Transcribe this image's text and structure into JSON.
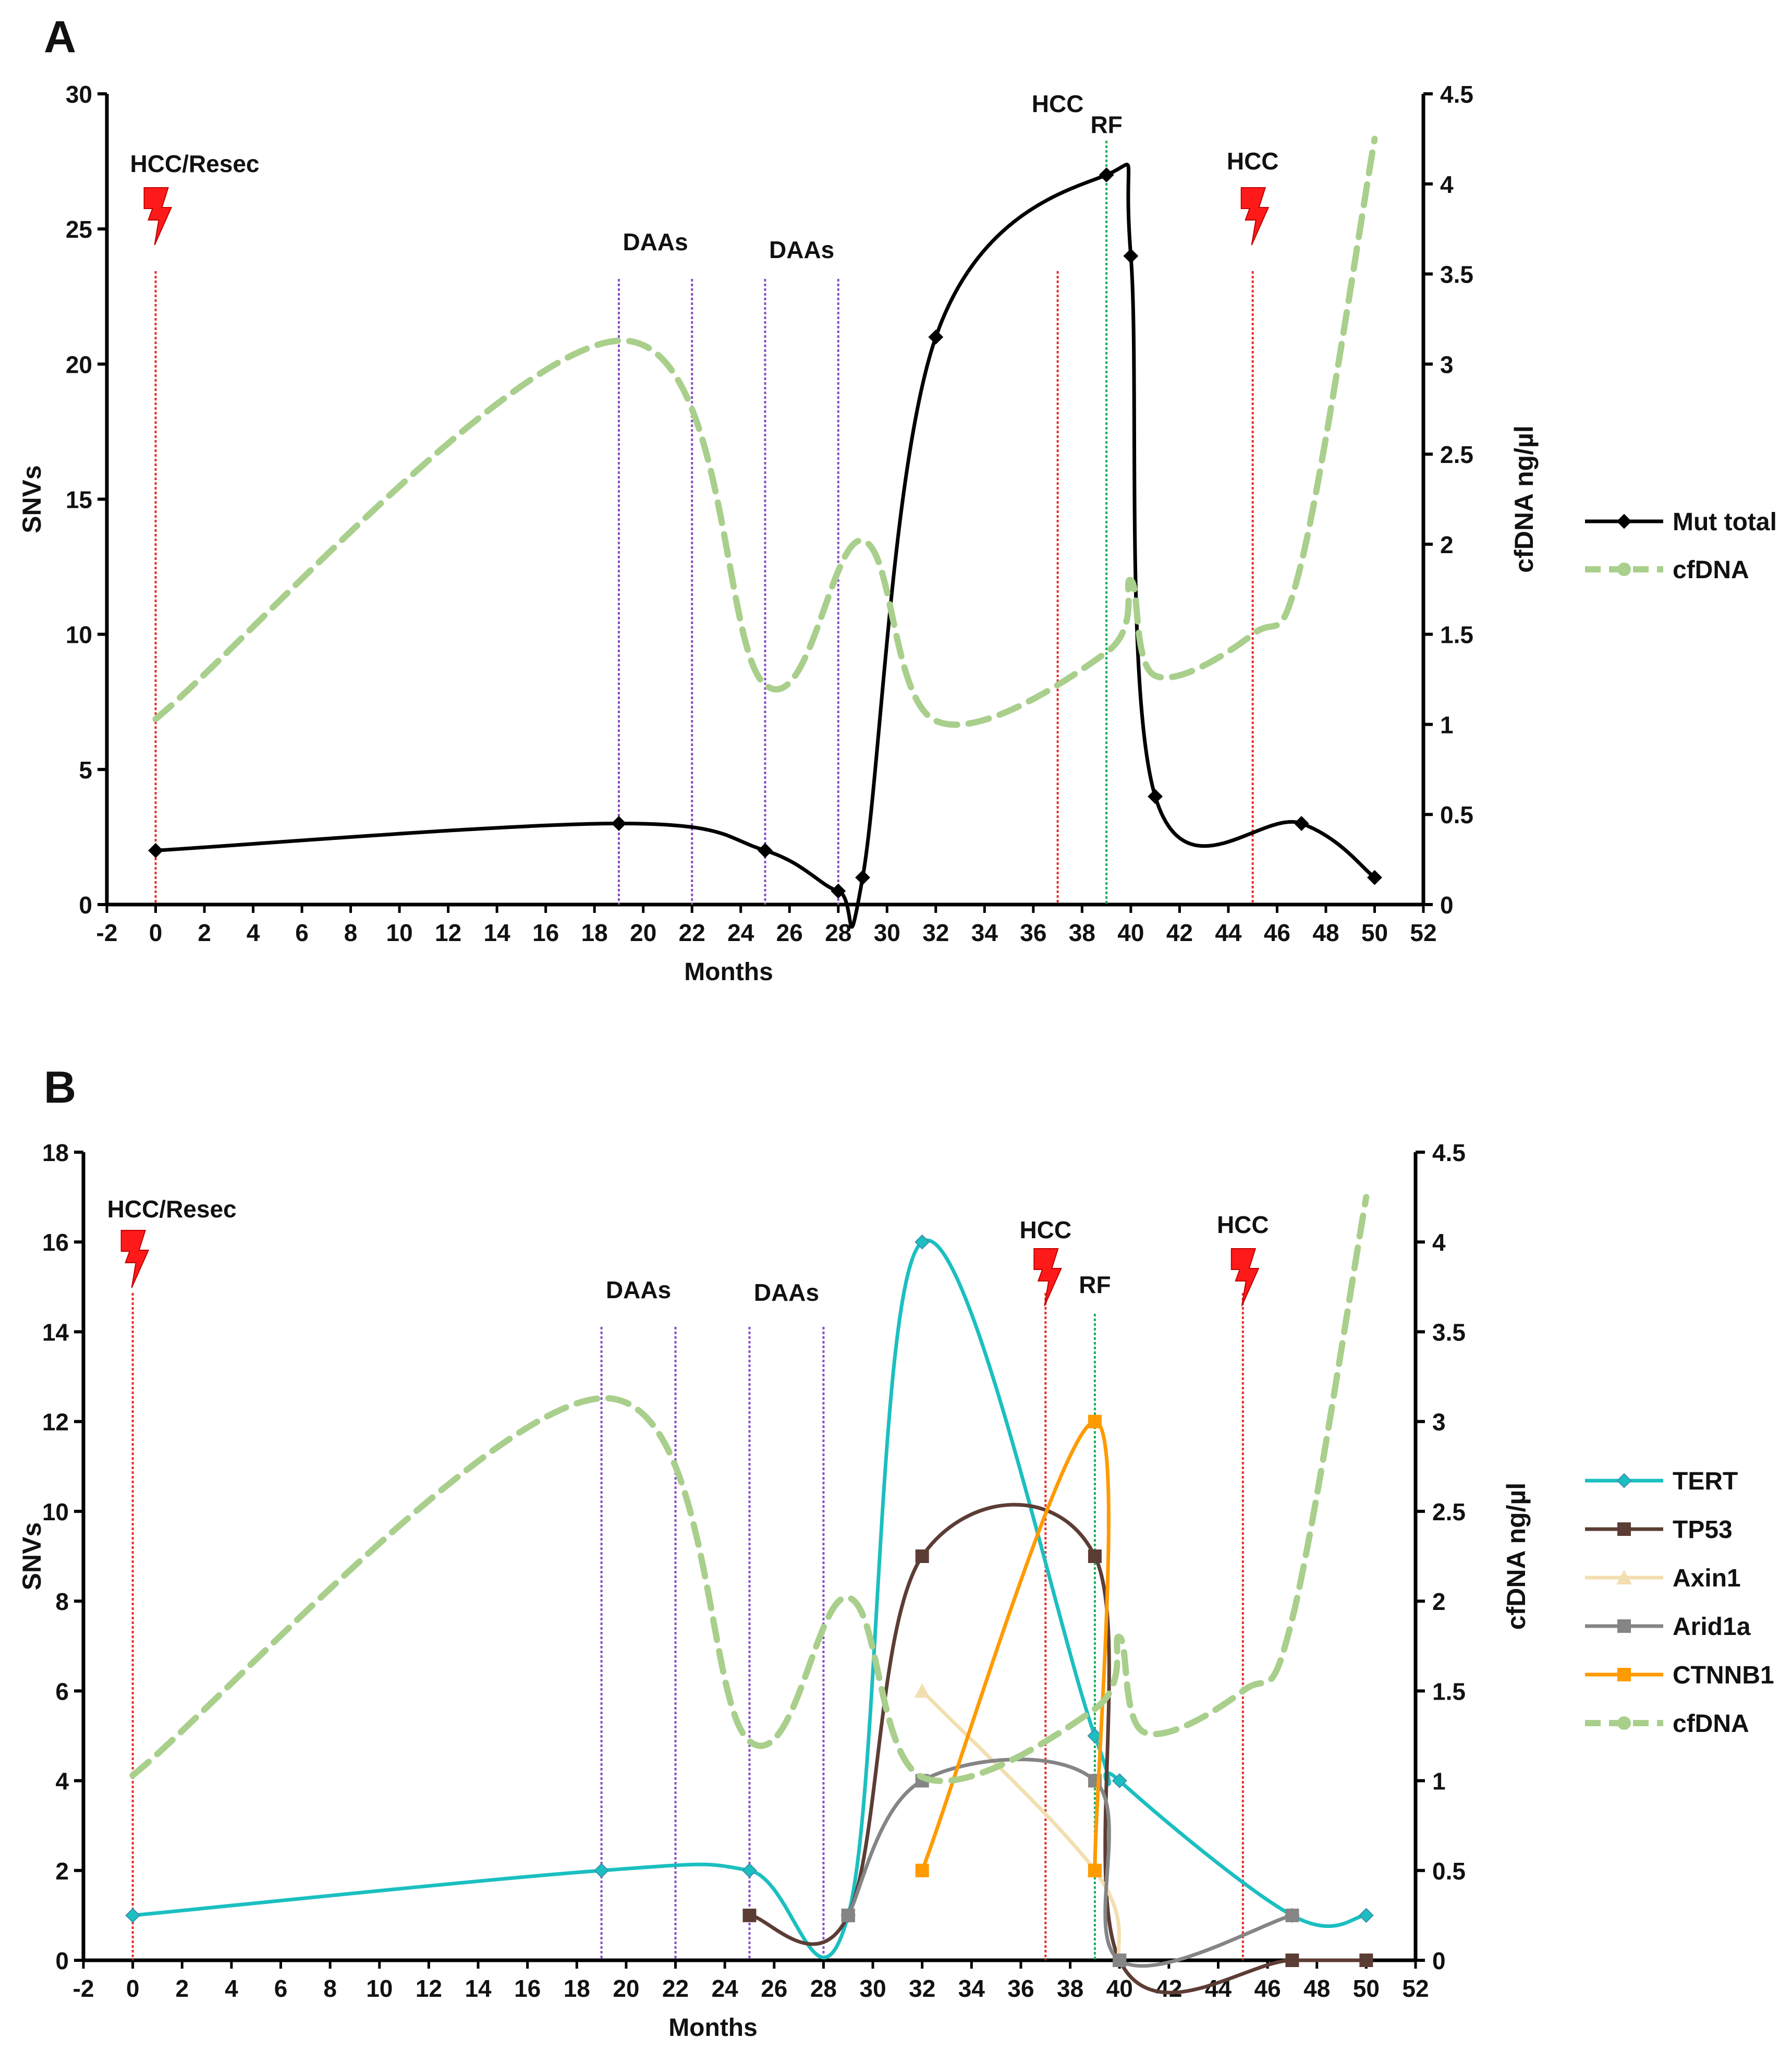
{
  "chart_data": [
    {
      "panel_label": "A",
      "type": "line",
      "xlabel": "Months",
      "ylabel": "SNVs",
      "y2label": "cfDNA ng/µl",
      "xlim": [
        -2,
        52
      ],
      "ylim": [
        0,
        30
      ],
      "y2lim": [
        0,
        4.5
      ],
      "xticks": [
        -2,
        0,
        2,
        4,
        6,
        8,
        10,
        12,
        14,
        16,
        18,
        20,
        22,
        24,
        26,
        28,
        30,
        32,
        34,
        36,
        38,
        40,
        42,
        44,
        46,
        48,
        50,
        52
      ],
      "yticks": [
        0,
        5,
        10,
        15,
        20,
        25,
        30
      ],
      "y2ticks": [
        0,
        0.5,
        1,
        1.5,
        2,
        2.5,
        3,
        3.5,
        4,
        4.5
      ],
      "legend_position": "right",
      "series": [
        {
          "name": "Mut total",
          "axis": "left",
          "color": "#000000",
          "marker": "diamond",
          "dashed": false,
          "x": [
            0,
            19,
            25,
            28,
            29,
            32,
            39,
            40,
            41,
            47,
            50
          ],
          "values": [
            2,
            3,
            2,
            0.5,
            1,
            21,
            27,
            24,
            4,
            3,
            1
          ]
        },
        {
          "name": "cfDNA",
          "axis": "right",
          "color": "#a9cf8c",
          "marker": "circle",
          "dashed": true,
          "x": [
            0,
            19,
            25,
            29,
            32,
            39,
            40,
            41,
            45,
            47,
            50
          ],
          "values": [
            1.03,
            3.13,
            1.22,
            2.02,
            1.02,
            1.4,
            1.8,
            1.27,
            1.5,
            1.9,
            4.25
          ]
        }
      ],
      "events": [
        {
          "x": 0,
          "kind": "hcc",
          "color": "#e8302b",
          "label": "HCC/Resec",
          "icon": "lightning-bolt-icon"
        },
        {
          "x": 19,
          "kind": "daa",
          "color": "#8a4fc7",
          "label": "DAAs"
        },
        {
          "x": 22,
          "kind": "daa",
          "color": "#8a4fc7",
          "label": ""
        },
        {
          "x": 25,
          "kind": "daa",
          "color": "#8a4fc7",
          "label": "DAAs"
        },
        {
          "x": 28,
          "kind": "daa",
          "color": "#8a4fc7",
          "label": ""
        },
        {
          "x": 37,
          "kind": "hcc",
          "color": "#e8302b",
          "label": "HCC"
        },
        {
          "x": 39,
          "kind": "rf",
          "color": "#1fae5a",
          "label": "RF"
        },
        {
          "x": 45,
          "kind": "hcc",
          "color": "#e8302b",
          "label": "HCC",
          "icon": "lightning-bolt-icon"
        }
      ]
    },
    {
      "panel_label": "B",
      "type": "line",
      "xlabel": "Months",
      "ylabel": "SNVs",
      "y2label": "cfDNA ng/µl",
      "xlim": [
        -2,
        52
      ],
      "ylim": [
        0,
        18
      ],
      "y2lim": [
        0,
        4.5
      ],
      "xticks": [
        -2,
        0,
        2,
        4,
        6,
        8,
        10,
        12,
        14,
        16,
        18,
        20,
        22,
        24,
        26,
        28,
        30,
        32,
        34,
        36,
        38,
        40,
        42,
        44,
        46,
        48,
        50,
        52
      ],
      "yticks": [
        0,
        2,
        4,
        6,
        8,
        10,
        12,
        14,
        16,
        18
      ],
      "y2ticks": [
        0,
        0.5,
        1,
        1.5,
        2,
        2.5,
        3,
        3.5,
        4,
        4.5
      ],
      "legend_position": "right",
      "series": [
        {
          "name": "TERT",
          "axis": "left",
          "color": "#1bbfc0",
          "marker": "diamond",
          "dashed": false,
          "x": [
            0,
            19,
            25,
            29,
            32,
            39,
            40,
            47,
            50
          ],
          "values": [
            1,
            2,
            2,
            1,
            16,
            5,
            4,
            1,
            1
          ]
        },
        {
          "name": "TP53",
          "axis": "left",
          "color": "#5c3d35",
          "marker": "square",
          "dashed": false,
          "x": [
            25,
            29,
            32,
            39,
            40,
            47,
            50
          ],
          "values": [
            1,
            1,
            9,
            9,
            0,
            0,
            0
          ]
        },
        {
          "name": "Axin1",
          "axis": "left",
          "color": "#f3deb0",
          "marker": "triangle",
          "dashed": false,
          "x": [
            32,
            39,
            40
          ],
          "values": [
            6,
            2,
            0
          ]
        },
        {
          "name": "Arid1a",
          "axis": "left",
          "color": "#858585",
          "marker": "square",
          "dashed": false,
          "x": [
            29,
            32,
            39,
            40,
            47
          ],
          "values": [
            1,
            4,
            4,
            0,
            1
          ]
        },
        {
          "name": "CTNNB1",
          "axis": "left",
          "color": "#ff9a00",
          "marker": "square",
          "dashed": false,
          "x": [
            32,
            39,
            39
          ],
          "values": [
            2,
            12,
            2
          ]
        },
        {
          "name": "cfDNA",
          "axis": "right",
          "color": "#a9cf8c",
          "marker": "circle",
          "dashed": true,
          "x": [
            0,
            19,
            25,
            29,
            32,
            39,
            40,
            41,
            45,
            47,
            50
          ],
          "values": [
            1.03,
            3.13,
            1.22,
            2.02,
            1.02,
            1.4,
            1.8,
            1.27,
            1.5,
            1.9,
            4.25
          ]
        }
      ],
      "events": [
        {
          "x": 0,
          "kind": "hcc",
          "color": "#e8302b",
          "label": "HCC/Resec",
          "icon": "lightning-bolt-icon"
        },
        {
          "x": 19,
          "kind": "daa",
          "color": "#8a4fc7",
          "label": "DAAs"
        },
        {
          "x": 22,
          "kind": "daa",
          "color": "#8a4fc7",
          "label": ""
        },
        {
          "x": 25,
          "kind": "daa",
          "color": "#8a4fc7",
          "label": "DAAs"
        },
        {
          "x": 28,
          "kind": "daa",
          "color": "#8a4fc7",
          "label": ""
        },
        {
          "x": 37,
          "kind": "hcc",
          "color": "#e8302b",
          "label": "HCC",
          "icon": "lightning-bolt-icon"
        },
        {
          "x": 39,
          "kind": "rf",
          "color": "#1fae5a",
          "label": "RF"
        },
        {
          "x": 45,
          "kind": "hcc",
          "color": "#e8302b",
          "label": "HCC",
          "icon": "lightning-bolt-icon"
        }
      ]
    }
  ]
}
